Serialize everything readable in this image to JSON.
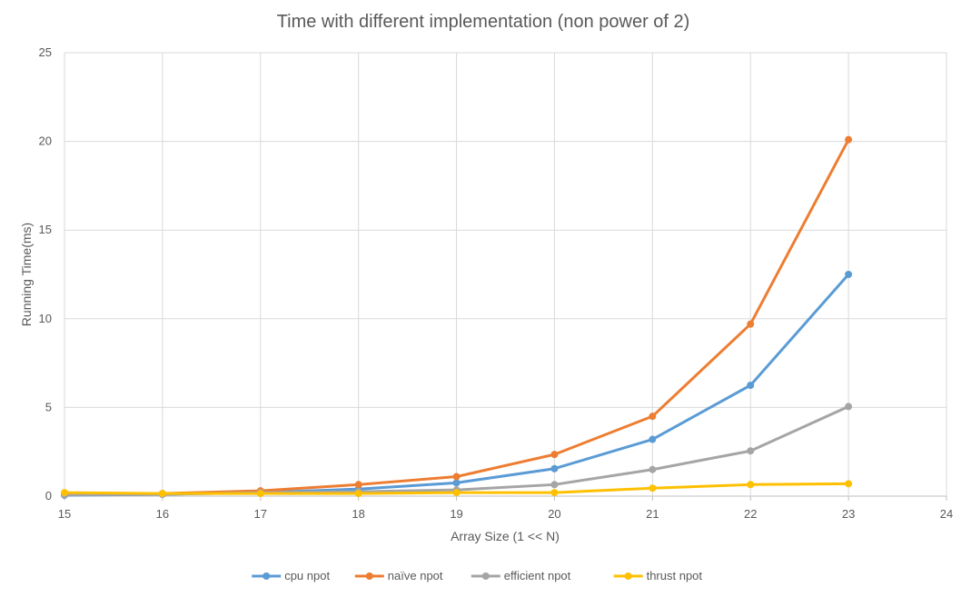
{
  "chart_data": {
    "type": "line",
    "title": "Time with different implementation (non power of 2)",
    "xlabel": "Array Size (1 << N)",
    "ylabel": "Running Time(ms)",
    "xlim": [
      15,
      24
    ],
    "ylim": [
      0,
      25
    ],
    "x_ticks": [
      "15",
      "16",
      "17",
      "18",
      "19",
      "20",
      "21",
      "22",
      "23",
      "24"
    ],
    "y_ticks": [
      "0",
      "5",
      "10",
      "15",
      "20",
      "25"
    ],
    "grid": true,
    "legend_position": "bottom",
    "x": [
      15,
      16,
      17,
      18,
      19,
      20,
      21,
      22,
      23
    ],
    "series": [
      {
        "name": "cpu npot",
        "color": "#5b9bd5",
        "values": [
          0.05,
          0.1,
          0.2,
          0.4,
          0.75,
          1.55,
          3.2,
          6.25,
          12.5
        ]
      },
      {
        "name": "naïve npot",
        "color": "#ed7d31",
        "values": [
          0.1,
          0.15,
          0.3,
          0.65,
          1.1,
          2.35,
          4.5,
          9.7,
          20.1
        ]
      },
      {
        "name": "efficient npot",
        "color": "#a5a5a5",
        "values": [
          0.08,
          0.1,
          0.2,
          0.25,
          0.35,
          0.65,
          1.5,
          2.55,
          5.05
        ]
      },
      {
        "name": "thrust npot",
        "color": "#ffc000",
        "values": [
          0.2,
          0.15,
          0.15,
          0.15,
          0.2,
          0.2,
          0.45,
          0.65,
          0.7
        ]
      }
    ]
  }
}
